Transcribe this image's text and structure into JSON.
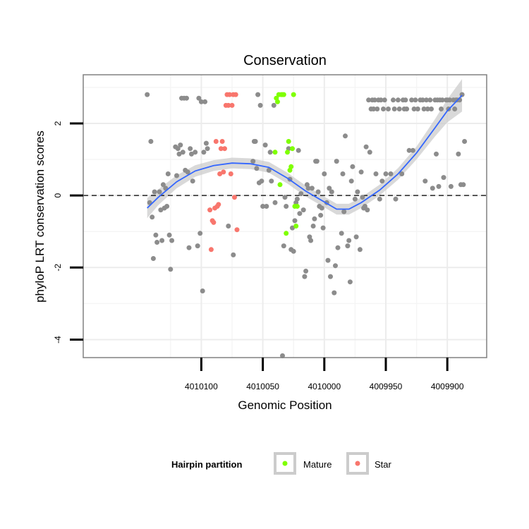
{
  "chart_data": {
    "type": "scatter",
    "title": "Conservation",
    "xlabel": "Genomic Position",
    "ylabel": "phyloP LRT conservation scores",
    "x_reversed": true,
    "xlim": [
      4010196,
      4009868
    ],
    "ylim": [
      -4.5,
      3.35
    ],
    "x_ticks": [
      4010100,
      4010050,
      4010000,
      4009950,
      4009900
    ],
    "y_ticks": [
      -4,
      -2,
      0,
      2
    ],
    "grid": true,
    "reference_line": {
      "y": 0,
      "style": "dashed"
    },
    "legend": {
      "title": "Hairpin partition",
      "position": "bottom",
      "entries": [
        {
          "label": "Mature",
          "color": "#7fff00"
        },
        {
          "label": "Star",
          "color": "#f8766d"
        }
      ]
    },
    "colors": {
      "other": "#8c8c8c",
      "mature": "#7fff00",
      "star": "#f8766d",
      "smooth": "#3366ff",
      "ribbon": "#cccccc"
    },
    "series": [
      {
        "group": "other",
        "points": [
          [
            4010144,
            2.8
          ],
          [
            4010142,
            -0.2
          ],
          [
            4010141,
            1.5
          ],
          [
            4010140,
            -0.6
          ],
          [
            4010139,
            -1.75
          ],
          [
            4010138,
            0.1
          ],
          [
            4010137,
            -1.1
          ],
          [
            4010136,
            -1.3
          ],
          [
            4010134,
            0.1
          ],
          [
            4010133,
            -0.4
          ],
          [
            4010132,
            -1.25
          ],
          [
            4010131,
            0.3
          ],
          [
            4010130,
            -0.35
          ],
          [
            4010129,
            0.2
          ],
          [
            4010128,
            -0.3
          ],
          [
            4010127,
            0.6
          ],
          [
            4010126,
            -1.1
          ],
          [
            4010125,
            -2.05
          ],
          [
            4010124,
            -1.25
          ],
          [
            4010121,
            1.35
          ],
          [
            4010120,
            0.55
          ],
          [
            4010119,
            1.3
          ],
          [
            4010118,
            1.15
          ],
          [
            4010117,
            1.4
          ],
          [
            4010116,
            2.7
          ],
          [
            4010115,
            1.2
          ],
          [
            4010114,
            2.7
          ],
          [
            4010113,
            0.7
          ],
          [
            4010112,
            2.7
          ],
          [
            4010111,
            0.65
          ],
          [
            4010110,
            -1.45
          ],
          [
            4010109,
            1.3
          ],
          [
            4010108,
            1.15
          ],
          [
            4010107,
            0.4
          ],
          [
            4010105,
            1.2
          ],
          [
            4010103,
            -1.4
          ],
          [
            4010102,
            2.7
          ],
          [
            4010101,
            -1.05
          ],
          [
            4010100,
            2.6
          ],
          [
            4010099,
            -2.65
          ],
          [
            4010098,
            1.2
          ],
          [
            4010097,
            2.6
          ],
          [
            4010096,
            1.45
          ],
          [
            4010095,
            1.3
          ],
          [
            4010078,
            -0.85
          ],
          [
            4010074,
            -1.65
          ],
          [
            4010058,
            0.95
          ],
          [
            4010057,
            1.5
          ],
          [
            4010056,
            1.5
          ],
          [
            4010055,
            0.75
          ],
          [
            4010054,
            2.8
          ],
          [
            4010053,
            0.35
          ],
          [
            4010052,
            2.5
          ],
          [
            4010051,
            0.4
          ],
          [
            4010050,
            -0.3
          ],
          [
            4010048,
            1.4
          ],
          [
            4010047,
            -0.3
          ],
          [
            4010045,
            0.7
          ],
          [
            4010044,
            1.2
          ],
          [
            4010043,
            0.4
          ],
          [
            4010041,
            2.5
          ],
          [
            4010040,
            -0.2
          ],
          [
            4010034,
            -4.45
          ],
          [
            4010033,
            -1.4
          ],
          [
            4010032,
            -0.05
          ],
          [
            4010031,
            -0.3
          ],
          [
            4010029,
            1.3
          ],
          [
            4010028,
            0.45
          ],
          [
            4010027,
            -1.5
          ],
          [
            4010026,
            -0.9
          ],
          [
            4010025,
            -1.55
          ],
          [
            4010024,
            -0.7
          ],
          [
            4010023,
            -0.2
          ],
          [
            4010022,
            -0.1
          ],
          [
            4010021,
            1.25
          ],
          [
            4010020,
            -0.5
          ],
          [
            4010019,
            0.05
          ],
          [
            4010017,
            -0.4
          ],
          [
            4010016,
            -2.25
          ],
          [
            4010015,
            -2.1
          ],
          [
            4010014,
            0.3
          ],
          [
            4010013,
            0.2
          ],
          [
            4010012,
            -1.15
          ],
          [
            4010011,
            -1.25
          ],
          [
            4010010,
            0.2
          ],
          [
            4010009,
            -0.85
          ],
          [
            4010008,
            -0.65
          ],
          [
            4010007,
            0.95
          ],
          [
            4010006,
            0.95
          ],
          [
            4010005,
            0.1
          ],
          [
            4010004,
            -0.3
          ],
          [
            4010003,
            -0.55
          ],
          [
            4010002,
            -0.35
          ],
          [
            4010001,
            -0.9
          ],
          [
            4010000,
            0.6
          ],
          [
            4009998,
            -0.2
          ],
          [
            4009997,
            -1.8
          ],
          [
            4009996,
            0.2
          ],
          [
            4009995,
            -2.25
          ],
          [
            4009994,
            0.1
          ],
          [
            4009992,
            -2.7
          ],
          [
            4009991,
            -1.95
          ],
          [
            4009990,
            0.95
          ],
          [
            4009989,
            -1.45
          ],
          [
            4009986,
            -1.05
          ],
          [
            4009985,
            0.6
          ],
          [
            4009984,
            -0.45
          ],
          [
            4009983,
            1.65
          ],
          [
            4009981,
            -1.4
          ],
          [
            4009980,
            -1.25
          ],
          [
            4009979,
            -2.4
          ],
          [
            4009978,
            0.4
          ],
          [
            4009977,
            0.8
          ],
          [
            4009975,
            -0.1
          ],
          [
            4009974,
            -1.15
          ],
          [
            4009973,
            0.1
          ],
          [
            4009971,
            -1.5
          ],
          [
            4009970,
            0.65
          ],
          [
            4009969,
            -0.05
          ],
          [
            4009968,
            -0.35
          ],
          [
            4009967,
            -0.3
          ],
          [
            4009966,
            1.35
          ],
          [
            4009965,
            -0.4
          ],
          [
            4009964,
            2.65
          ],
          [
            4009963,
            1.2
          ],
          [
            4009962,
            2.4
          ],
          [
            4009961,
            2.65
          ],
          [
            4009960,
            2.4
          ],
          [
            4009959,
            2.65
          ],
          [
            4009958,
            0.6
          ],
          [
            4009957,
            2.4
          ],
          [
            4009956,
            2.65
          ],
          [
            4009955,
            -0.1
          ],
          [
            4009954,
            2.65
          ],
          [
            4009953,
            0.4
          ],
          [
            4009952,
            2.4
          ],
          [
            4009951,
            2.65
          ],
          [
            4009950,
            0.6
          ],
          [
            4009948,
            2.4
          ],
          [
            4009946,
            0.6
          ],
          [
            4009944,
            2.65
          ],
          [
            4009943,
            2.4
          ],
          [
            4009942,
            -0.1
          ],
          [
            4009940,
            2.65
          ],
          [
            4009939,
            2.4
          ],
          [
            4009937,
            0.6
          ],
          [
            4009936,
            2.65
          ],
          [
            4009935,
            2.4
          ],
          [
            4009934,
            2.65
          ],
          [
            4009933,
            2.4
          ],
          [
            4009931,
            1.25
          ],
          [
            4009929,
            2.65
          ],
          [
            4009928,
            1.25
          ],
          [
            4009927,
            2.4
          ],
          [
            4009926,
            2.65
          ],
          [
            4009924,
            2.4
          ],
          [
            4009922,
            2.65
          ],
          [
            4009920,
            2.65
          ],
          [
            4009919,
            2.4
          ],
          [
            4009918,
            0.4
          ],
          [
            4009917,
            2.65
          ],
          [
            4009916,
            2.4
          ],
          [
            4009914,
            2.65
          ],
          [
            4009913,
            2.4
          ],
          [
            4009912,
            0.2
          ],
          [
            4009910,
            2.65
          ],
          [
            4009909,
            1.15
          ],
          [
            4009908,
            2.65
          ],
          [
            4009907,
            0.25
          ],
          [
            4009906,
            2.65
          ],
          [
            4009905,
            2.4
          ],
          [
            4009904,
            2.65
          ],
          [
            4009903,
            0.5
          ],
          [
            4009901,
            2.65
          ],
          [
            4009900,
            2.65
          ],
          [
            4009899,
            2.4
          ],
          [
            4009898,
            2.65
          ],
          [
            4009897,
            0.25
          ],
          [
            4009895,
            2.65
          ],
          [
            4009894,
            2.4
          ],
          [
            4009893,
            2.65
          ],
          [
            4009892,
            2.65
          ],
          [
            4009891,
            1.15
          ],
          [
            4009890,
            2.65
          ],
          [
            4009889,
            0.3
          ],
          [
            4009888,
            2.8
          ],
          [
            4009887,
            0.3
          ],
          [
            4009886,
            1.5
          ]
        ]
      },
      {
        "group": "star",
        "points": [
          [
            4010093,
            -0.4
          ],
          [
            4010092,
            -1.5
          ],
          [
            4010091,
            -0.7
          ],
          [
            4010090,
            -0.75
          ],
          [
            4010089,
            -0.35
          ],
          [
            4010088,
            1.5
          ],
          [
            4010087,
            -0.3
          ],
          [
            4010086,
            -0.25
          ],
          [
            4010085,
            0.6
          ],
          [
            4010084,
            1.3
          ],
          [
            4010083,
            1.5
          ],
          [
            4010082,
            0.65
          ],
          [
            4010081,
            1.3
          ],
          [
            4010080,
            2.5
          ],
          [
            4010079,
            2.8
          ],
          [
            4010078,
            2.5
          ],
          [
            4010077,
            2.8
          ],
          [
            4010076,
            0.6
          ],
          [
            4010075,
            2.5
          ],
          [
            4010074,
            2.8
          ],
          [
            4010073,
            -0.05
          ],
          [
            4010072,
            2.8
          ],
          [
            4010071,
            -0.95
          ]
        ]
      },
      {
        "group": "mature",
        "points": [
          [
            4010040,
            1.2
          ],
          [
            4010039,
            2.7
          ],
          [
            4010038,
            2.6
          ],
          [
            4010037,
            2.8
          ],
          [
            4010036,
            0.3
          ],
          [
            4010035,
            2.8
          ],
          [
            4010034,
            2.8
          ],
          [
            4010033,
            2.8
          ],
          [
            4010031,
            -1.05
          ],
          [
            4010030,
            1.2
          ],
          [
            4010029,
            1.5
          ],
          [
            4010028,
            0.7
          ],
          [
            4010027,
            0.8
          ],
          [
            4010026,
            1.3
          ],
          [
            4010025,
            2.8
          ],
          [
            4010024,
            -0.3
          ],
          [
            4010023,
            -0.85
          ],
          [
            4010022,
            -0.3
          ]
        ]
      }
    ],
    "smooth": [
      [
        4010144,
        -0.35
      ],
      [
        4010135,
        -0.05
      ],
      [
        4010120,
        0.38
      ],
      [
        4010105,
        0.68
      ],
      [
        4010090,
        0.83
      ],
      [
        4010075,
        0.9
      ],
      [
        4010060,
        0.88
      ],
      [
        4010045,
        0.78
      ],
      [
        4010030,
        0.48
      ],
      [
        4010015,
        0.12
      ],
      [
        4010000,
        -0.18
      ],
      [
        4009990,
        -0.38
      ],
      [
        4009980,
        -0.38
      ],
      [
        4009970,
        -0.2
      ],
      [
        4009955,
        0.15
      ],
      [
        4009940,
        0.6
      ],
      [
        4009925,
        1.18
      ],
      [
        4009910,
        1.88
      ],
      [
        4009900,
        2.35
      ],
      [
        4009888,
        2.78
      ]
    ],
    "smooth_se": [
      0.28,
      0.22,
      0.18,
      0.16,
      0.15,
      0.15,
      0.15,
      0.15,
      0.15,
      0.15,
      0.15,
      0.15,
      0.15,
      0.15,
      0.15,
      0.16,
      0.18,
      0.24,
      0.32,
      0.45
    ]
  }
}
